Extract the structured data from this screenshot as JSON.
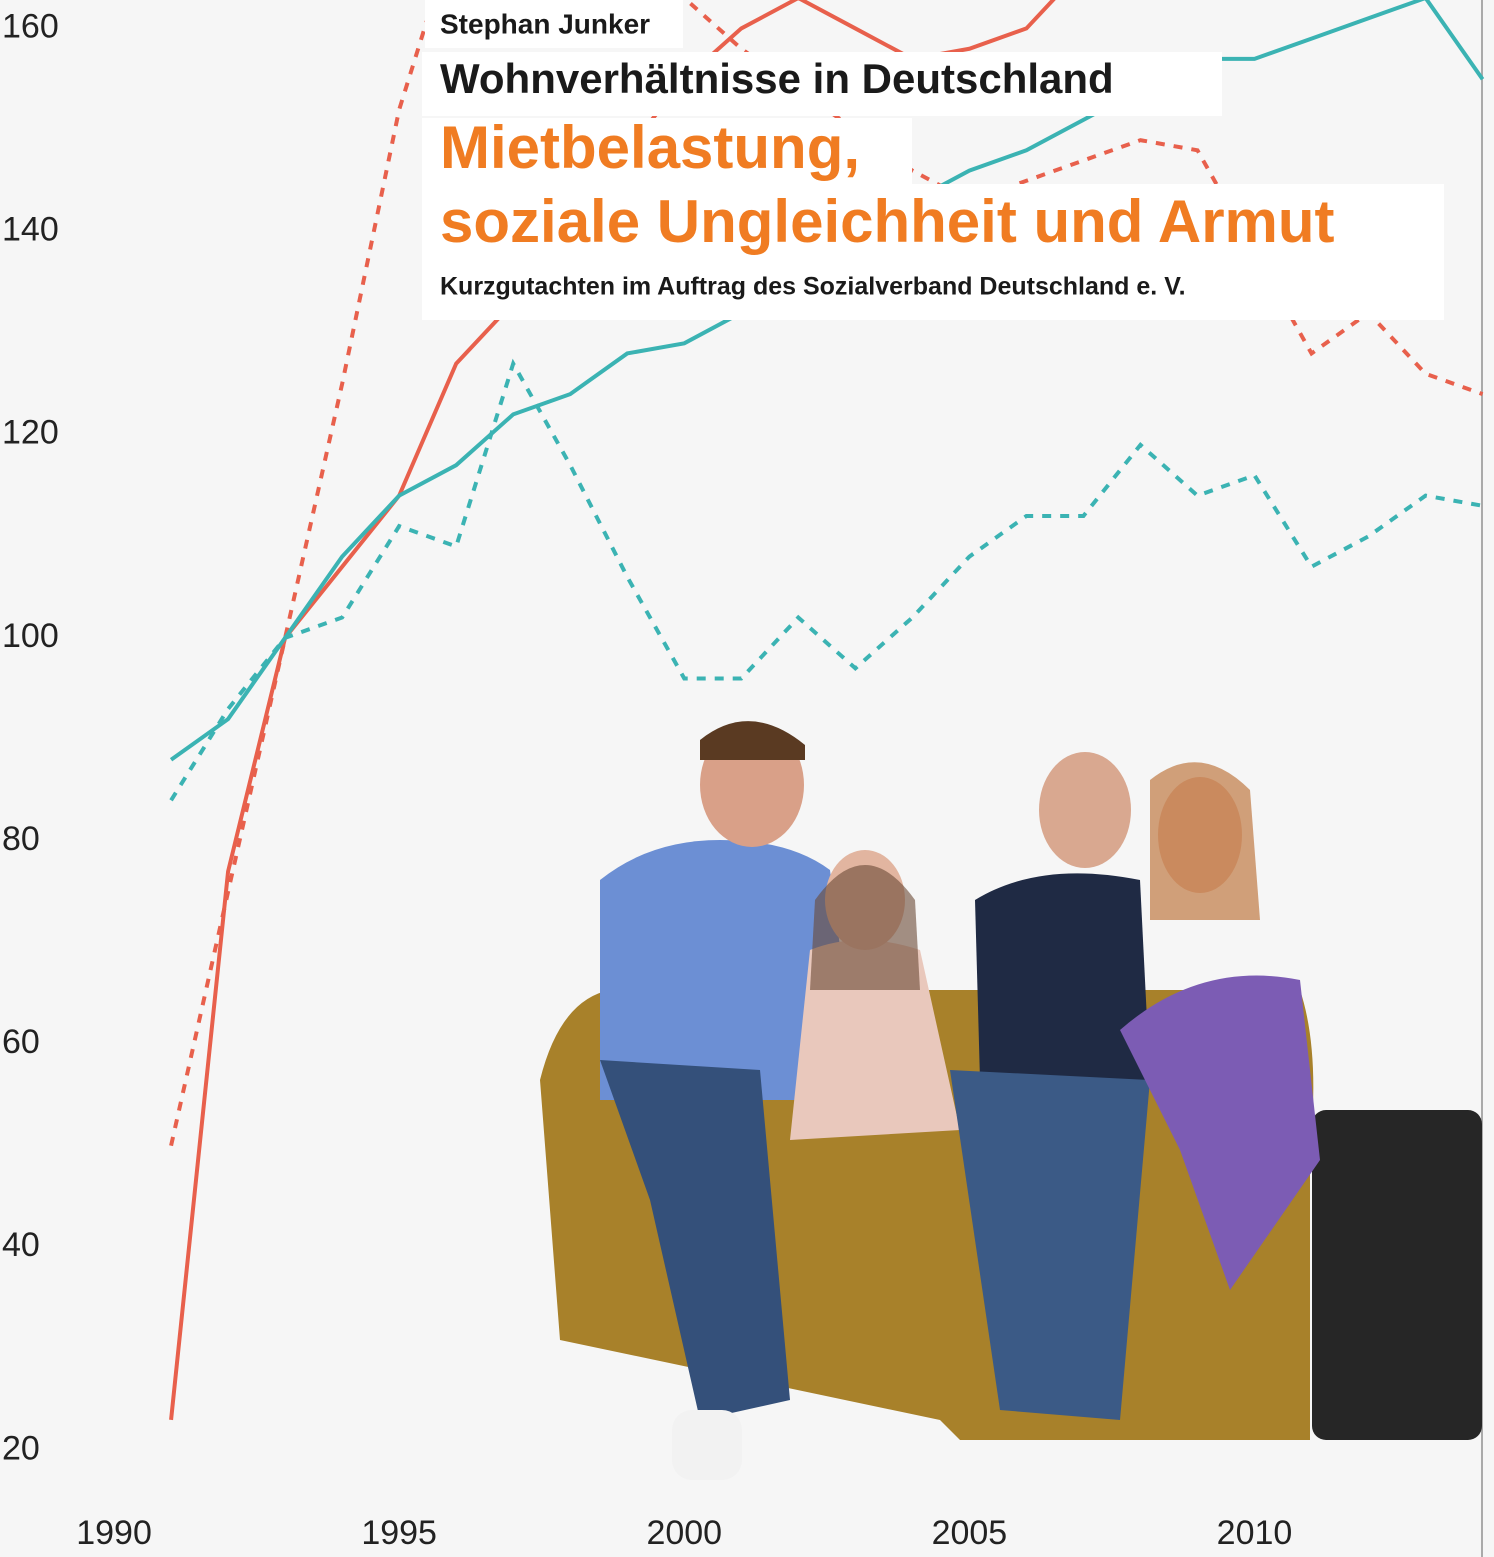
{
  "cover": {
    "author": "Stephan Junker",
    "title": "Wohnverhältnisse in Deutschland",
    "headline": [
      "Mietbelastung,",
      "soziale Ungleichheit und Armut"
    ],
    "subtitle": "Kurzgutachten im Auftrag des Sozialverband Deutschland e. V."
  },
  "chart_data": {
    "type": "line",
    "x": [
      1991,
      1992,
      1993,
      1994,
      1995,
      1996,
      1997,
      1998,
      1999,
      2000,
      2001,
      2002,
      2003,
      2004,
      2005,
      2006,
      2007,
      2008,
      2009,
      2010,
      2011,
      2012,
      2013,
      2014
    ],
    "xlim": [
      1988,
      2014.2
    ],
    "xticks": [
      1990,
      1995,
      2000,
      2005,
      2010,
      2015
    ],
    "ylim": [
      9.5,
      162.8
    ],
    "yticks": [
      20,
      40,
      60,
      80,
      100,
      120,
      140,
      160
    ],
    "series": [
      {
        "color": "#e8604c",
        "dashed": false,
        "values": [
          23,
          77,
          100,
          107,
          114,
          127,
          133,
          140,
          148,
          155,
          160,
          163,
          160,
          157,
          158,
          160,
          166,
          172,
          null,
          null,
          null,
          null,
          null,
          null
        ]
      },
      {
        "color": "#e8604c",
        "dashed": true,
        "values": [
          50,
          75,
          100,
          125,
          152,
          170,
          175,
          172,
          168,
          163,
          158,
          154,
          150,
          146,
          143,
          145,
          147,
          149,
          148,
          138,
          128,
          132,
          126,
          124
        ]
      },
      {
        "color": "#3bb3b3",
        "dashed": false,
        "values": [
          88,
          92,
          100,
          108,
          114,
          117,
          122,
          124,
          128,
          129,
          132,
          136,
          140,
          143,
          146,
          148,
          151,
          154,
          157,
          157,
          159,
          161,
          163,
          155
        ]
      },
      {
        "color": "#3bb3b3",
        "dashed": true,
        "values": [
          84,
          93,
          100,
          102,
          111,
          109,
          127,
          117,
          106,
          96,
          96,
          102,
          97,
          102,
          108,
          112,
          112,
          119,
          114,
          116,
          107,
          110,
          114,
          113
        ]
      }
    ]
  }
}
